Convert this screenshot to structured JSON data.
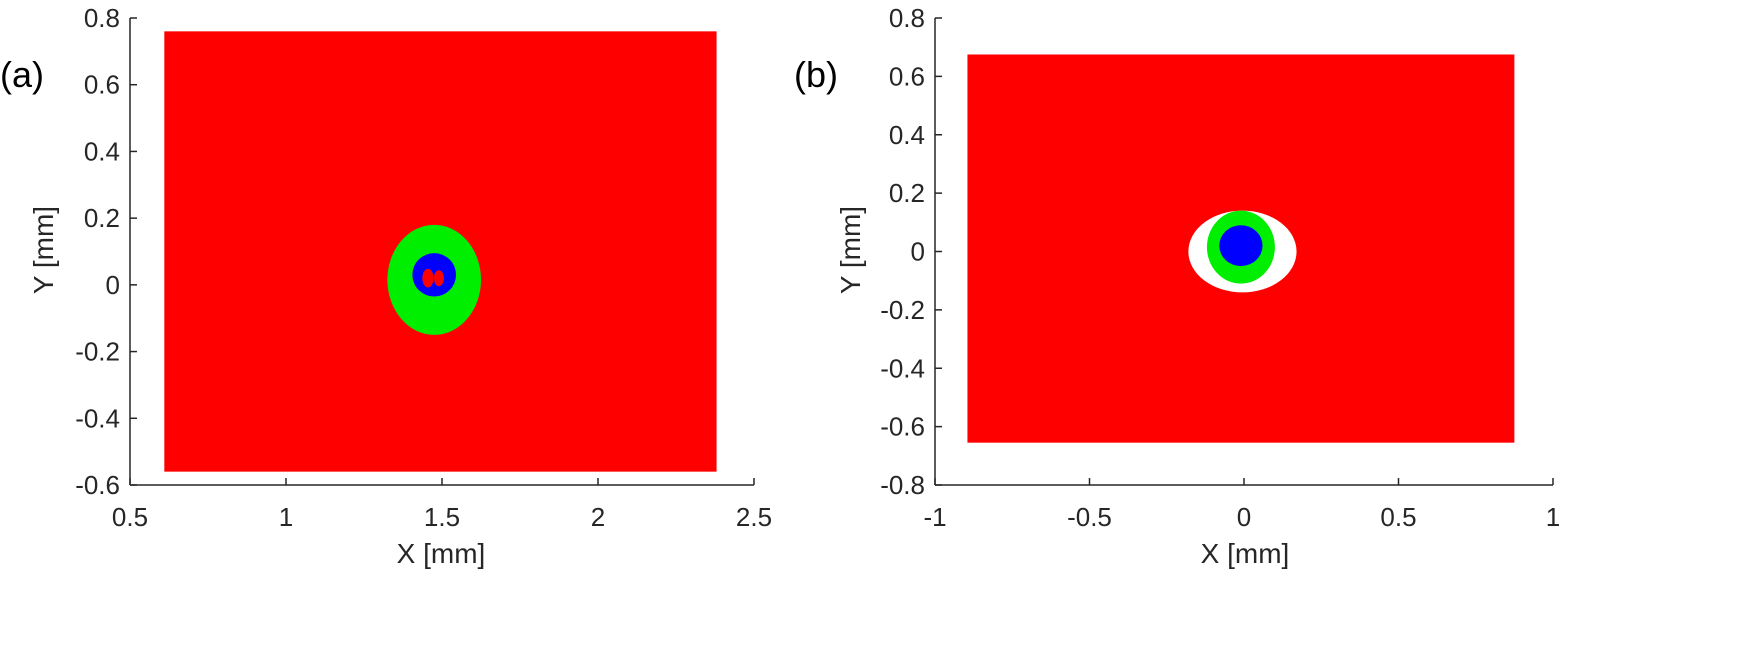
{
  "chart_data": [
    {
      "type": "heatmap",
      "panel_label": "(a)",
      "xlabel": "X [mm]",
      "ylabel": "Y [mm]",
      "xlim": [
        0.5,
        2.5
      ],
      "ylim": [
        -0.6,
        0.8
      ],
      "xticks": [
        "0.5",
        "1",
        "1.5",
        "2",
        "2.5"
      ],
      "yticks": [
        "-0.6",
        "-0.4",
        "-0.2",
        "0",
        "0.2",
        "0.4",
        "0.6",
        "0.8"
      ],
      "grid": false,
      "colors": {
        "background": "#ff0000",
        "ring": "#00ee00",
        "core": "#0000ff",
        "gap": "#ffffff",
        "inner": "#ff0000"
      },
      "regions": {
        "background": {
          "x": [
            0.61,
            2.38
          ],
          "y": [
            -0.56,
            0.76
          ]
        },
        "ring": {
          "cx": 1.475,
          "cy": 0.015,
          "rx": 0.15,
          "ry": 0.165
        },
        "core": {
          "cx": 1.475,
          "cy": 0.03,
          "rx": 0.07,
          "ry": 0.065
        },
        "inner_spots": [
          {
            "cx": 1.455,
            "cy": 0.02,
            "rx": 0.018,
            "ry": 0.028
          },
          {
            "cx": 1.49,
            "cy": 0.02,
            "rx": 0.016,
            "ry": 0.024
          }
        ]
      }
    },
    {
      "type": "heatmap",
      "panel_label": "(b)",
      "xlabel": "X [mm]",
      "ylabel": "Y [mm]",
      "xlim": [
        -1,
        1
      ],
      "ylim": [
        -0.8,
        0.8
      ],
      "xticks": [
        "-1",
        "-0.5",
        "0",
        "0.5",
        "1"
      ],
      "yticks": [
        "-0.8",
        "-0.6",
        "-0.4",
        "-0.2",
        "0",
        "0.2",
        "0.4",
        "0.6",
        "0.8"
      ],
      "grid": false,
      "colors": {
        "background": "#ff0000",
        "gap": "#ffffff",
        "ring": "#00ee00",
        "core": "#0000ff"
      },
      "regions": {
        "background": {
          "x": [
            -0.895,
            0.875
          ],
          "y": [
            -0.655,
            0.675
          ]
        },
        "gap": {
          "cx": -0.005,
          "cy": 0.0,
          "rx": 0.175,
          "ry": 0.14
        },
        "ring": {
          "cx": -0.01,
          "cy": 0.015,
          "rx": 0.11,
          "ry": 0.125
        },
        "core": {
          "cx": -0.01,
          "cy": 0.02,
          "rx": 0.07,
          "ry": 0.07
        }
      }
    }
  ]
}
